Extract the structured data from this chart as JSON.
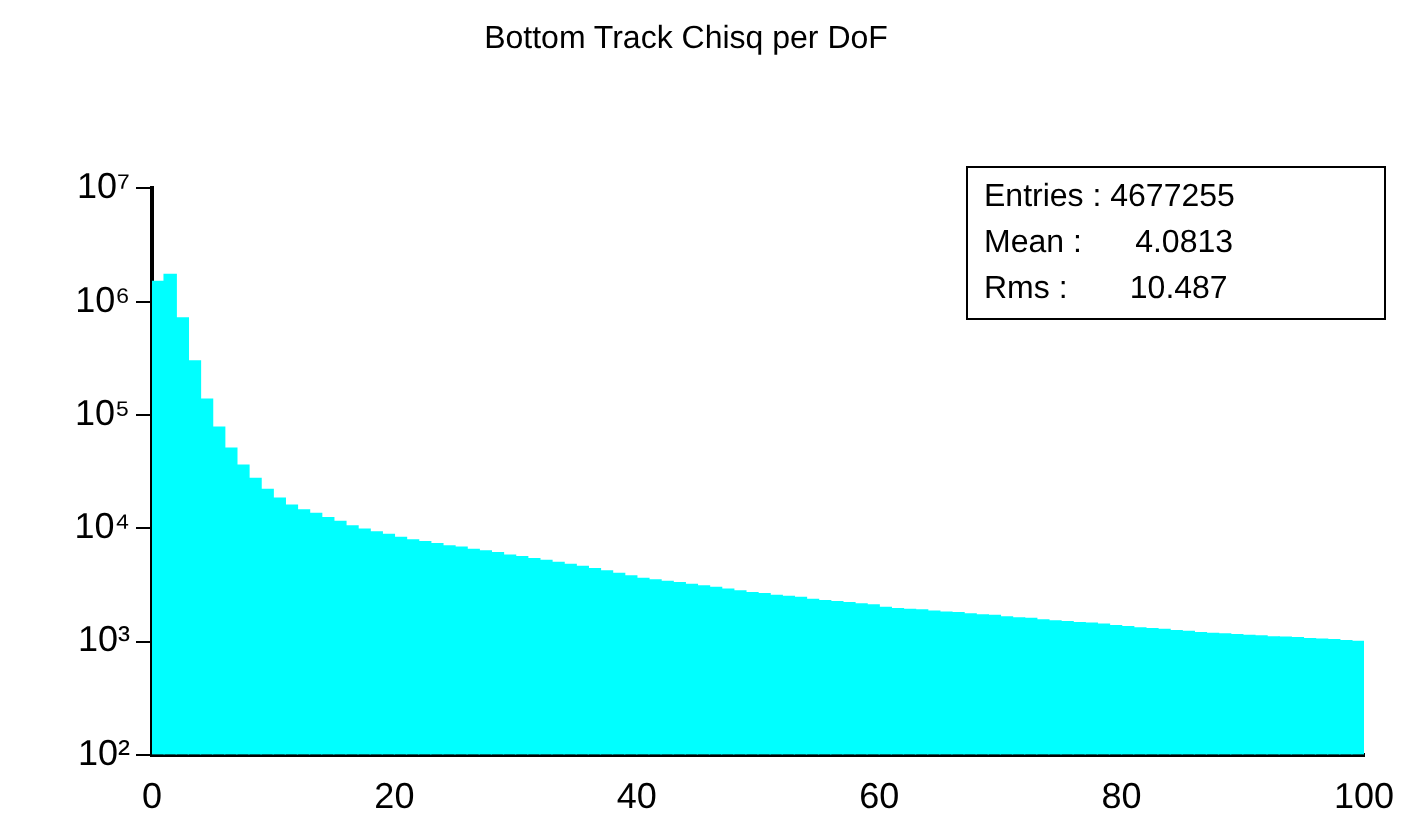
{
  "chart_data": {
    "type": "histogram",
    "title": "Bottom Track Chisq per DoF",
    "bins": [
      0,
      1,
      2,
      3,
      4,
      5,
      6,
      7,
      8,
      9,
      10,
      11,
      12,
      13,
      14,
      15,
      16,
      17,
      18,
      19,
      20,
      21,
      22,
      23,
      24,
      25,
      26,
      27,
      28,
      29,
      30,
      31,
      32,
      33,
      34,
      35,
      36,
      37,
      38,
      39,
      40,
      41,
      42,
      43,
      44,
      45,
      46,
      47,
      48,
      49,
      50,
      51,
      52,
      53,
      54,
      55,
      56,
      57,
      58,
      59,
      60,
      61,
      62,
      63,
      64,
      65,
      66,
      67,
      68,
      69,
      70,
      71,
      72,
      73,
      74,
      75,
      76,
      77,
      78,
      79,
      80,
      81,
      82,
      83,
      84,
      85,
      86,
      87,
      88,
      89,
      90,
      91,
      92,
      93,
      94,
      95,
      96,
      97,
      98,
      99,
      100
    ],
    "values": [
      1510000,
      1740000,
      720000,
      300000,
      138000,
      78000,
      51000,
      36000,
      27500,
      22000,
      18400,
      16000,
      14500,
      13500,
      12400,
      11500,
      10500,
      9800,
      9300,
      8800,
      8300,
      7900,
      7600,
      7300,
      7000,
      6800,
      6500,
      6300,
      6100,
      5800,
      5600,
      5400,
      5200,
      5000,
      4800,
      4600,
      4400,
      4200,
      4000,
      3800,
      3600,
      3500,
      3400,
      3300,
      3200,
      3100,
      3000,
      2900,
      2800,
      2700,
      2650,
      2550,
      2500,
      2450,
      2350,
      2300,
      2250,
      2200,
      2150,
      2100,
      2000,
      1950,
      1920,
      1900,
      1850,
      1820,
      1800,
      1750,
      1720,
      1700,
      1650,
      1620,
      1600,
      1550,
      1520,
      1500,
      1470,
      1450,
      1420,
      1380,
      1350,
      1320,
      1300,
      1280,
      1250,
      1230,
      1200,
      1180,
      1170,
      1150,
      1130,
      1120,
      1100,
      1090,
      1080,
      1060,
      1050,
      1040,
      1020,
      1000
    ],
    "color": "#00ffff",
    "xlim": [
      0,
      100
    ],
    "xticks": [
      0,
      20,
      40,
      60,
      80,
      100
    ],
    "ylim": [
      100,
      10000000
    ],
    "log": true,
    "yticks": [
      {
        "value": 100,
        "label": "10²"
      },
      {
        "value": 1000,
        "label": "10³"
      },
      {
        "value": 10000,
        "label": "10⁴"
      },
      {
        "value": 100000,
        "label": "10⁵"
      },
      {
        "value": 1000000,
        "label": "10⁶"
      },
      {
        "value": 10000000,
        "label": "10⁷"
      }
    ],
    "grid": false,
    "legend": false,
    "annotations": [
      "Entries : 4677255",
      "Mean :      4.0813",
      "Rms :       10.487"
    ]
  }
}
